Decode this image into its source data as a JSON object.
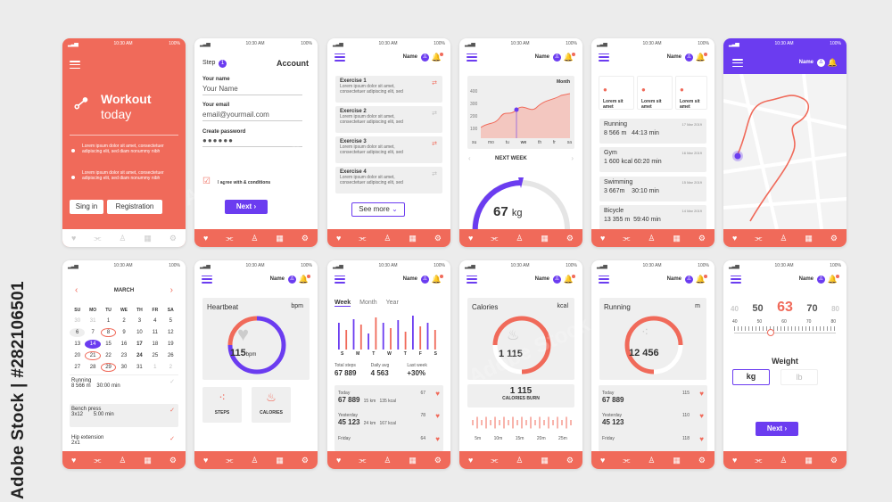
{
  "status": {
    "time": "10:30 AM",
    "battery": "100%"
  },
  "user": {
    "name": "Name"
  },
  "s1": {
    "title1": "Workout",
    "title2": "today",
    "bullet1": "Lorem ipsum dolor sit amet, consectetuer adipiscing elit, sed diam nonummy nibh",
    "bullet2": "Lorem ipsum dolor sit amet, consectetuer adipiscing elit, sed diam nonummy nibh",
    "signin": "Sing in",
    "registration": "Registration"
  },
  "s2": {
    "step": "Step",
    "step_num": "1",
    "title": "Account",
    "name_label": "Your name",
    "name_value": "Your Name",
    "email_label": "Your email",
    "email_value": "email@yourmail.com",
    "password_label": "Create password",
    "password_value": "●●●●●●",
    "agree": "I agree with & conditions",
    "next": "Next"
  },
  "s3": {
    "exercises": [
      {
        "name": "Exercise 1",
        "desc": "Lorem ipsum dolor sit amet, consectetuer adipiscing elit, sed"
      },
      {
        "name": "Exercise 2",
        "desc": "Lorem ipsum dolor sit amet, consectetuer adipiscing elit, sed"
      },
      {
        "name": "Exercise 3",
        "desc": "Lorem ipsum dolor sit amet, consectetuer adipiscing elit, sed"
      },
      {
        "name": "Exercise 4",
        "desc": "Lorem ipsum dolor sit amet, consectetuer adipiscing elit, sed"
      }
    ],
    "see_more": "See more"
  },
  "s4": {
    "period": "Month",
    "yticks": [
      "400",
      "300",
      "200",
      "100"
    ],
    "days": [
      "su",
      "mo",
      "tu",
      "we",
      "th",
      "fr",
      "sa"
    ],
    "next_week": "NEXT WEEK",
    "weight": "67",
    "unit": "kg"
  },
  "s5": {
    "cards": [
      "Lorem sit amet",
      "Lorem sit amet",
      "Lorem sit amet"
    ],
    "activities": [
      {
        "name": "Running",
        "date": "17 Mar 2019",
        "v1": "8 566 m",
        "v2": "44:13 min"
      },
      {
        "name": "Gym",
        "date": "16 Mar 2019",
        "v1": "1 600 kcal",
        "v2": "60:20 min"
      },
      {
        "name": "Swimming",
        "date": "15 Mar 2019",
        "v1": "3 667m",
        "v2": "30:10 min"
      },
      {
        "name": "Bicycle",
        "date": "14 Mar 2019",
        "v1": "13 355 m",
        "v2": "59:40 min"
      }
    ]
  },
  "s7": {
    "month": "MARCH",
    "weekdays": [
      "SU",
      "MO",
      "TU",
      "WE",
      "TH",
      "FR",
      "SA"
    ],
    "days": [
      "30",
      "31",
      "1",
      "2",
      "3",
      "4",
      "5",
      "6",
      "7",
      "8",
      "9",
      "10",
      "11",
      "12",
      "13",
      "14",
      "15",
      "16",
      "17",
      "18",
      "19",
      "20",
      "21",
      "22",
      "23",
      "24",
      "25",
      "26",
      "27",
      "28",
      "29",
      "30",
      "31",
      "1",
      "2"
    ],
    "list": [
      {
        "name": "Running",
        "v1": "8 566 m",
        "v2": "30:00 min"
      },
      {
        "name": "Bench press",
        "v1": "3x12",
        "v2": "5:00 min"
      },
      {
        "name": "Hip extension",
        "v1": "2x1",
        "v2": ""
      }
    ]
  },
  "s8": {
    "heartbeat": "Heartbeat",
    "unit": "bpm",
    "value": "115",
    "value_unit": "bpm",
    "steps": "STEPS",
    "calories": "CALORIES"
  },
  "s9": {
    "tabs": [
      "Week",
      "Month",
      "Year"
    ],
    "days": [
      "S",
      "M",
      "T",
      "W",
      "T",
      "F",
      "S"
    ],
    "sum_labels": [
      "Total steps",
      "Daily avg",
      "Last week"
    ],
    "sum_values": [
      "67 889",
      "4 563",
      "+30%"
    ],
    "entries": [
      {
        "day": "Today",
        "n": "67",
        "v": "67 889",
        "km": "15 km",
        "kcal": "135 kcal"
      },
      {
        "day": "Yesterday",
        "n": "78",
        "v": "45 123",
        "km": "24 km",
        "kcal": "167 kcal"
      },
      {
        "day": "Friday",
        "n": "64",
        "v": "",
        "km": "",
        "kcal": ""
      }
    ]
  },
  "s10": {
    "title": "Calories",
    "unit": "kcal",
    "value": "1 115",
    "burn_value": "1 115",
    "burn_label": "CALORIES BURN",
    "ticks": [
      "5m",
      "10m",
      "15m",
      "20m",
      "25m"
    ]
  },
  "s11": {
    "title": "Running",
    "unit": "m",
    "value": "12 456",
    "entries": [
      {
        "day": "Today",
        "n": "115",
        "v": "67 889",
        "km": "15 km",
        "kcal": "135 kcal"
      },
      {
        "day": "Yesterday",
        "n": "110",
        "v": "45 123",
        "km": "24 km",
        "kcal": "167 kcal"
      },
      {
        "day": "Friday",
        "n": "118",
        "v": "",
        "km": "",
        "kcal": ""
      }
    ]
  },
  "s12": {
    "nums": [
      "40",
      "50",
      "63",
      "70",
      "80"
    ],
    "scale": [
      "40",
      "50",
      "60",
      "70",
      "80"
    ],
    "label": "Weight",
    "kg": "kg",
    "lb": "lb",
    "next": "Next"
  },
  "watermark": {
    "text": "Adobe Stock | #282106501",
    "logo": "Adobe Stock"
  }
}
